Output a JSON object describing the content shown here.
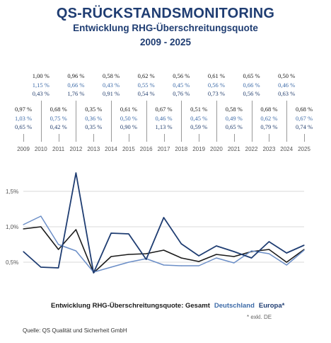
{
  "header": {
    "title": "QS-RÜCKSTANDSMONITORING",
    "subtitle": "Entwicklung RHG-Überschreitungsquote",
    "period": "2009 - 2025"
  },
  "colors": {
    "gesamt": "#1a1a1a",
    "deutschland": "#6b8ec7",
    "europa": "#1f3d72",
    "grid": "#cccccc"
  },
  "chart_data": {
    "type": "line",
    "x": [
      "2009",
      "2010",
      "2011",
      "2012",
      "2013",
      "2014",
      "2015",
      "2016",
      "2017",
      "2018",
      "2019",
      "2020",
      "2021",
      "2022",
      "2023",
      "2024",
      "2025"
    ],
    "ylim": [
      0,
      2.0
    ],
    "yticks": [
      0.5,
      1.0,
      1.5
    ],
    "ytick_labels": [
      "0,5%",
      "1,0%",
      "1,5%"
    ],
    "grid": true,
    "legend": "bottom",
    "series": [
      {
        "name": "Gesamt",
        "values": [
          0.97,
          1.0,
          0.68,
          0.96,
          0.35,
          0.58,
          0.61,
          0.62,
          0.67,
          0.56,
          0.51,
          0.61,
          0.58,
          0.65,
          0.68,
          0.5,
          0.68
        ],
        "labels": [
          "0,97 %",
          "1,00 %",
          "0,68 %",
          "0,96 %",
          "0,35 %",
          "0,58 %",
          "0,61 %",
          "0,62 %",
          "0,67 %",
          "0,56 %",
          "0,51 %",
          "0,61 %",
          "0,58 %",
          "0,65 %",
          "0,68 %",
          "0,50 %",
          "0,68 %"
        ]
      },
      {
        "name": "Deutschland",
        "values": [
          1.03,
          1.15,
          0.75,
          0.66,
          0.36,
          0.43,
          0.5,
          0.55,
          0.46,
          0.45,
          0.45,
          0.56,
          0.49,
          0.66,
          0.62,
          0.46,
          0.67
        ],
        "labels": [
          "1,03 %",
          "1,15 %",
          "0,75 %",
          "0,66 %",
          "0,36 %",
          "0,43 %",
          "0,50 %",
          "0,55 %",
          "0,46 %",
          "0,45 %",
          "0,45 %",
          "0,56 %",
          "0,49 %",
          "0,66 %",
          "0,62 %",
          "0,46 %",
          "0,67 %"
        ]
      },
      {
        "name": "Europa*",
        "values": [
          0.65,
          0.43,
          0.42,
          1.76,
          0.35,
          0.91,
          0.9,
          0.54,
          1.13,
          0.76,
          0.59,
          0.73,
          0.65,
          0.56,
          0.79,
          0.63,
          0.74
        ],
        "labels": [
          "0,65 %",
          "0,43 %",
          "0,42 %",
          "1,76 %",
          "0,35 %",
          "0,91 %",
          "0,90 %",
          "0,54 %",
          "1,13 %",
          "0,76 %",
          "0,59 %",
          "0,73 %",
          "0,65 %",
          "0,56 %",
          "0,79 %",
          "0,63 %",
          "0,74 %"
        ]
      }
    ]
  },
  "legend": {
    "prefix": "Entwicklung RHG-Überschreitungsquote: Gesamt",
    "deutschland": "Deutschland",
    "europa": "Europa*"
  },
  "note": "* exkl. DE",
  "source": "Quelle: QS Qualität und Sicherheit GmbH"
}
